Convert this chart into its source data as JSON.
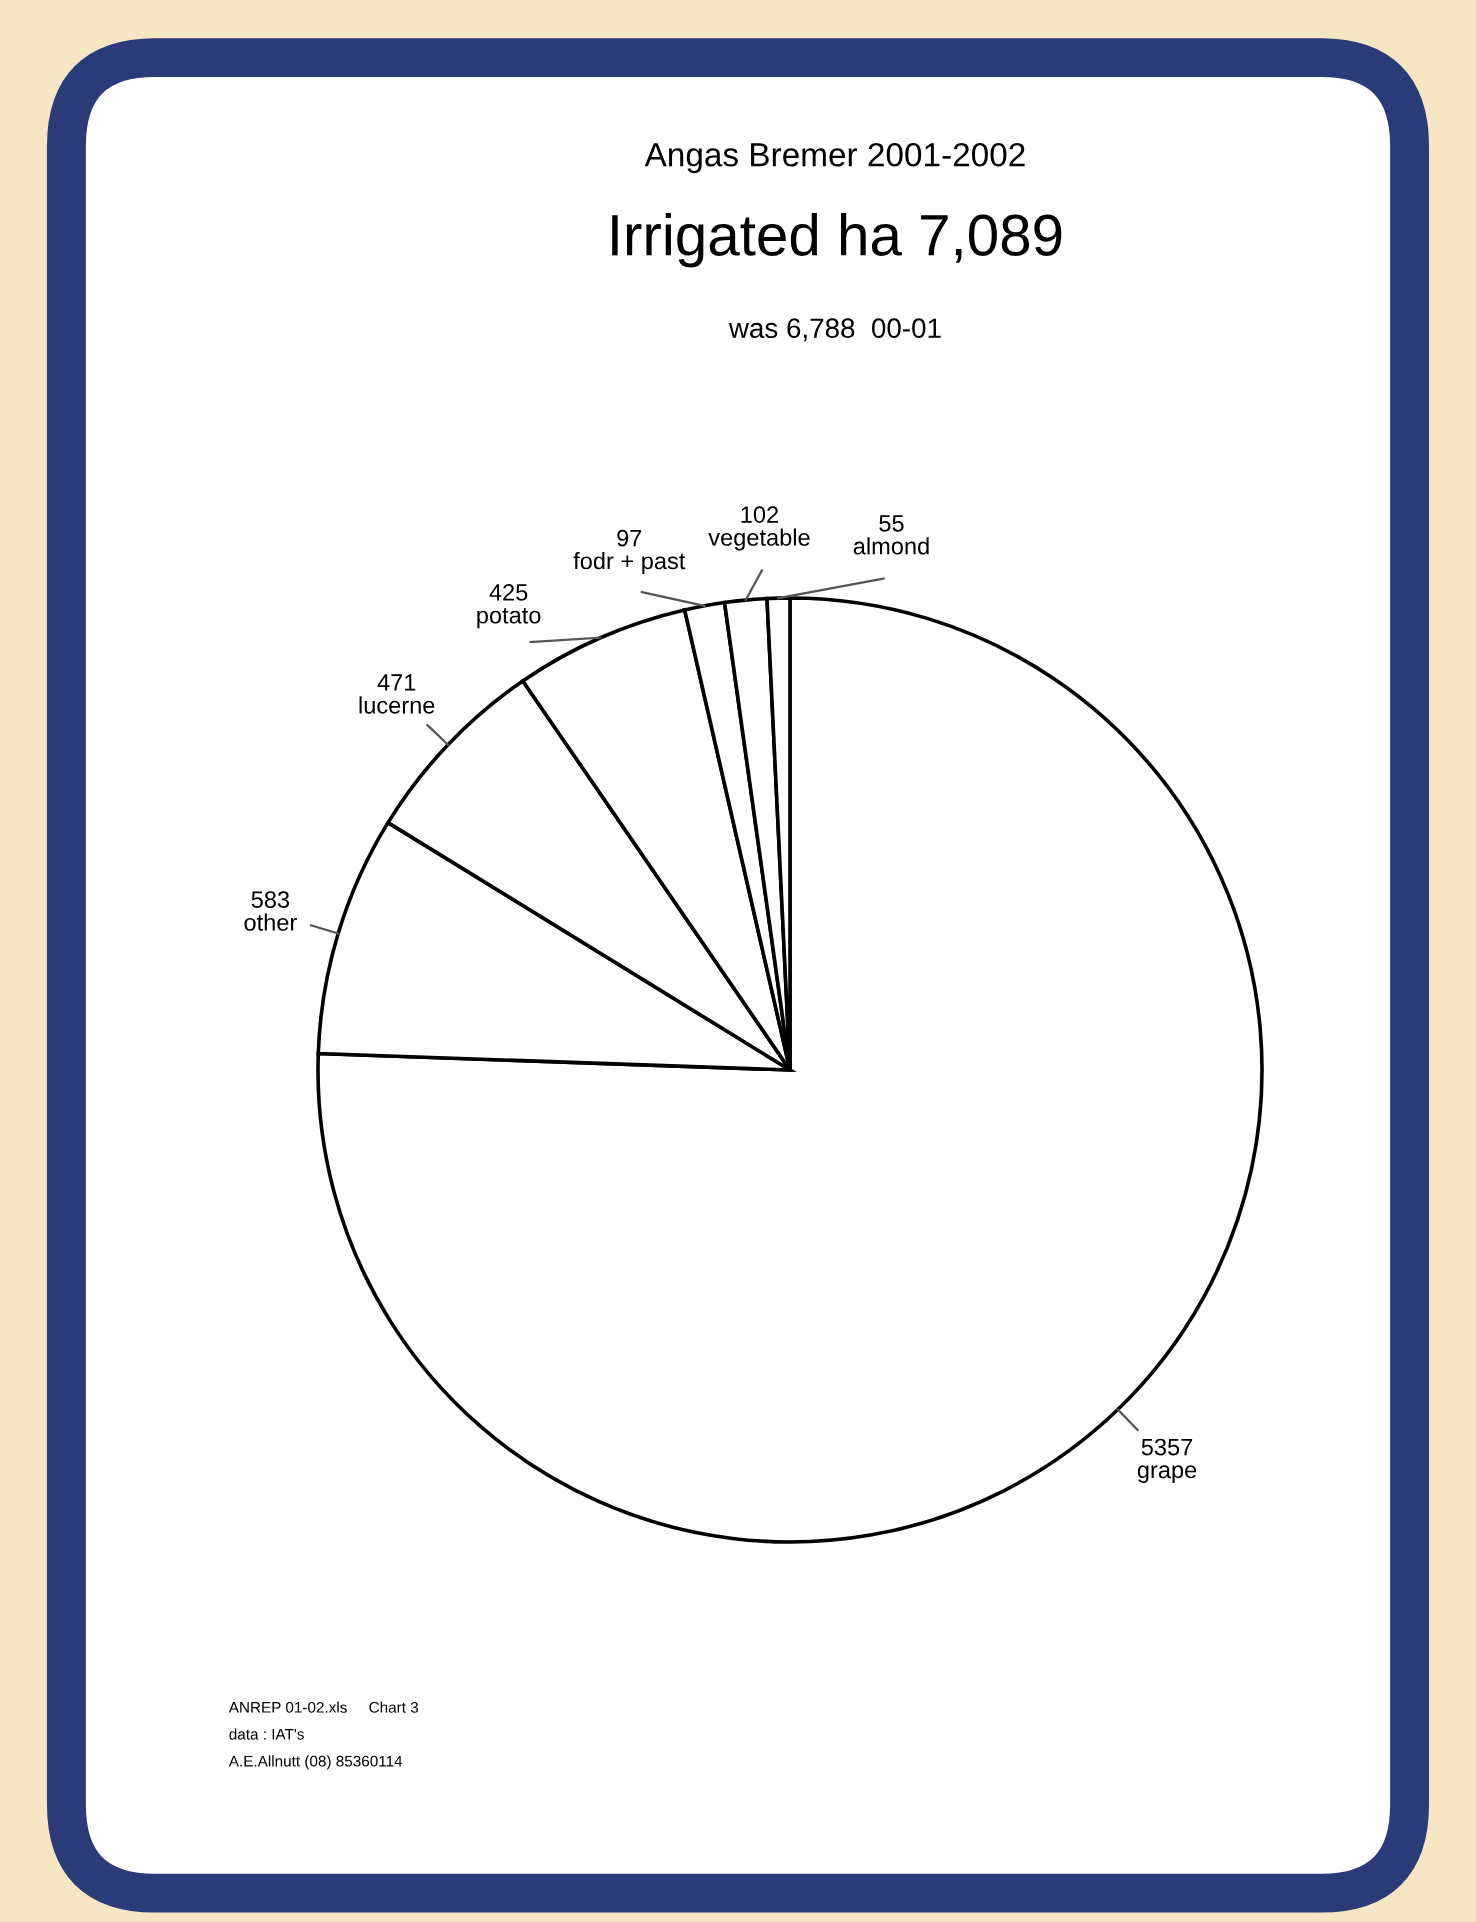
{
  "chart_data": {
    "type": "pie",
    "title": "Angas Bremer 2001-2002",
    "subtitle": "Irrigated ha 7,089",
    "annotations": [
      "was 6,788  00-01",
      "ANREP 01-02.xls     Chart 3",
      "data : IAT's",
      "A.E.Allnutt (08) 85360114"
    ],
    "categories": [
      "grape",
      "other",
      "lucerne",
      "potato",
      "fodr + past",
      "vegetable",
      "almond"
    ],
    "values": [
      5357,
      583,
      471,
      425,
      97,
      102,
      55
    ],
    "colors": [
      "#ffffff",
      "#ffffff",
      "#ffffff",
      "#ffffff",
      "#ffffff",
      "#ffffff",
      "#ffffff"
    ],
    "data_labels": true,
    "legend": false
  }
}
